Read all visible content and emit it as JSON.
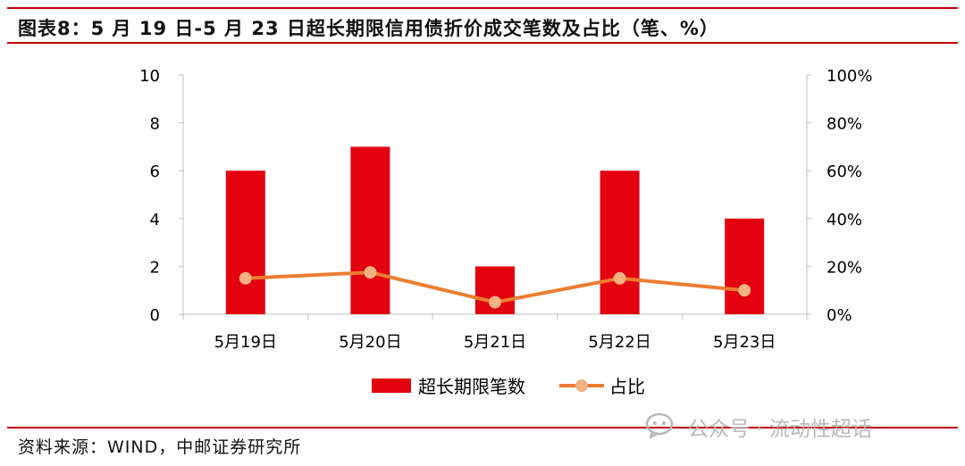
{
  "header": {
    "title": "图表8：5 月 19 日-5 月 23 日超长期限信用债折价成交笔数及占比（笔、%）"
  },
  "footer": {
    "source": "资料来源：WIND，中邮证券研究所"
  },
  "watermark": {
    "text": "公众号 · 流动性超话",
    "icon": "wechat-icon"
  },
  "colors": {
    "bar": "#e3000f",
    "line": "#ed7d31",
    "marker": "#f4b183",
    "accent": "#c00000"
  },
  "chart_data": {
    "type": "bar",
    "categories": [
      "5月19日",
      "5月20日",
      "5月21日",
      "5月22日",
      "5月23日"
    ],
    "series": [
      {
        "name": "超长期限笔数",
        "type": "bar",
        "axis": "left",
        "values": [
          6,
          7,
          2,
          6,
          4
        ]
      },
      {
        "name": "占比",
        "type": "line",
        "axis": "right",
        "values": [
          0.15,
          0.175,
          0.05,
          0.15,
          0.1
        ]
      }
    ],
    "y_left": {
      "min": 0,
      "max": 10,
      "ticks": [
        "0",
        "2",
        "4",
        "6",
        "8",
        "10"
      ]
    },
    "y_right": {
      "min": 0,
      "max": 1,
      "ticks": [
        "0%",
        "20%",
        "40%",
        "60%",
        "80%",
        "100%"
      ]
    },
    "grid": false,
    "legend_position": "bottom"
  }
}
